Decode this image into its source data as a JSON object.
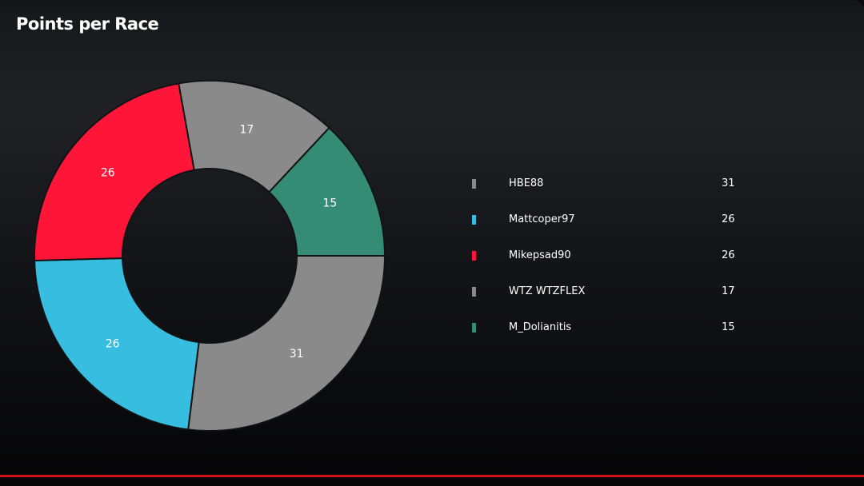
{
  "header": {
    "title": "Points per Race"
  },
  "colors": {
    "accent_line": "#d1121d",
    "text": "#ffffff"
  },
  "chart_data": {
    "type": "pie",
    "variant": "donut",
    "title": "Points per Race",
    "legend_position": "right",
    "slices": [
      {
        "name": "HBE88",
        "value": 31,
        "color": "#8a8a8a"
      },
      {
        "name": "Mattcoper97",
        "value": 26,
        "color": "#36bde0"
      },
      {
        "name": "Mikepsad90",
        "value": 26,
        "color": "#ff1538"
      },
      {
        "name": "WTZ WTZFLEX",
        "value": 17,
        "color": "#8a8a8a"
      },
      {
        "name": "M_Dolianitis",
        "value": 15,
        "color": "#348c74"
      }
    ]
  }
}
